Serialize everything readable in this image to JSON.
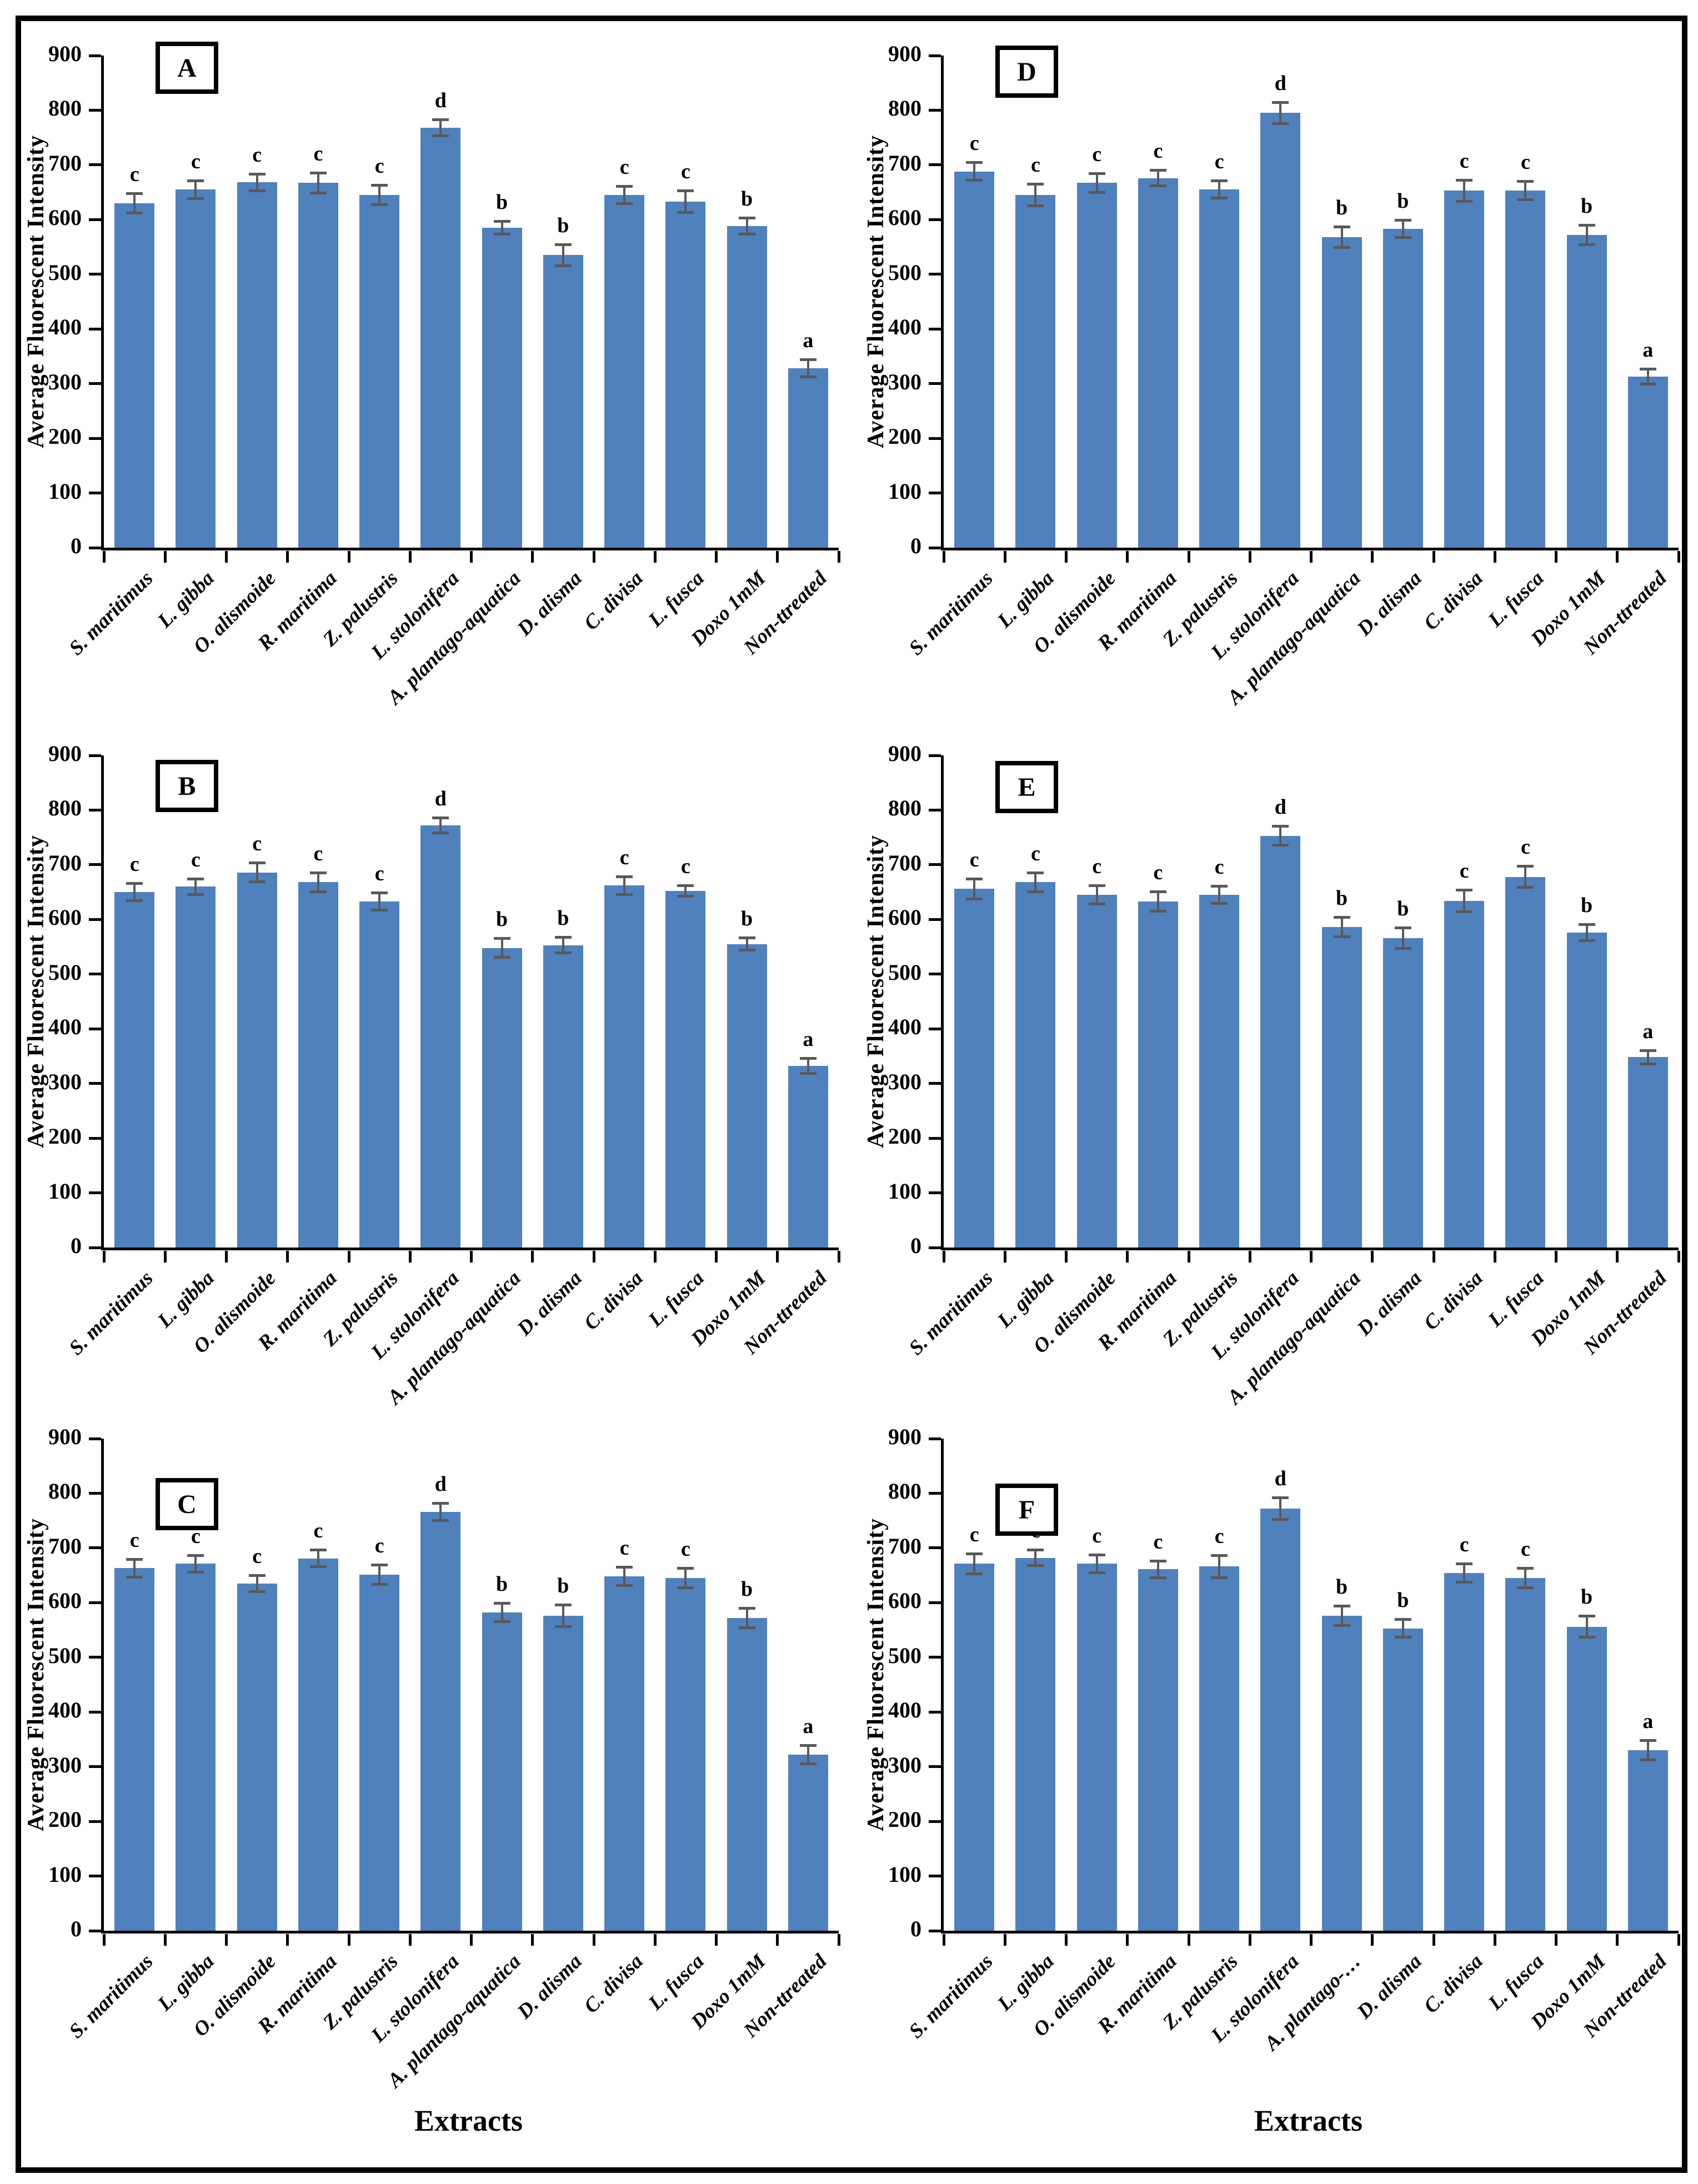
{
  "figure": {
    "xlabel": "Extracts",
    "bar_color": "#4F81BD",
    "error_color": "#595959"
  },
  "chart_data": [
    {
      "type": "bar",
      "panel_letter": "A",
      "ylabel": "Average Fluorescent Intensity",
      "xlabel": "",
      "ylim": [
        0,
        900
      ],
      "ytick_step": 100,
      "grid": "off",
      "legend": "none",
      "categories": [
        "S. maritimus",
        "L. gibba",
        "O. alismoide",
        "R. maritima",
        "Z. palustris",
        "L. stolonifera",
        "A. plantago-aquatica",
        "D. alisma",
        "C. divisa",
        "L. fusca",
        "Doxo 1mM",
        "Non-ttreated"
      ],
      "values": [
        630,
        655,
        668,
        667,
        645,
        768,
        585,
        535,
        645,
        633,
        588,
        328
      ],
      "errors": [
        18,
        17,
        16,
        19,
        18,
        15,
        12,
        20,
        16,
        20,
        15,
        16
      ],
      "sig_letters": [
        "c",
        "c",
        "c",
        "c",
        "c",
        "d",
        "b",
        "b",
        "c",
        "c",
        "b",
        "a"
      ],
      "bar_color": "#4F81BD",
      "error_color": "#595959"
    },
    {
      "type": "bar",
      "panel_letter": "D",
      "ylabel": "Average Fluorescent Intensity",
      "xlabel": "",
      "ylim": [
        0,
        900
      ],
      "ytick_step": 100,
      "grid": "off",
      "legend": "none",
      "categories": [
        "S. maritimus",
        "L. gibba",
        "O. alismoide",
        "R. maritima",
        "Z. palustris",
        "L. stolonifera",
        "A. plantago-aquatica",
        "D. alisma",
        "C. divisa",
        "L. fusca",
        "Doxo 1mM",
        "Non-ttreated"
      ],
      "values": [
        688,
        645,
        667,
        676,
        655,
        795,
        568,
        583,
        653,
        653,
        572,
        313
      ],
      "errors": [
        17,
        20,
        18,
        15,
        16,
        20,
        19,
        16,
        20,
        17,
        18,
        14
      ],
      "sig_letters": [
        "c",
        "c",
        "c",
        "c",
        "c",
        "d",
        "b",
        "b",
        "c",
        "c",
        "b",
        "a"
      ],
      "bar_color": "#4F81BD",
      "error_color": "#595959"
    },
    {
      "type": "bar",
      "panel_letter": "B",
      "ylabel": "Average Fluorescent Intensity",
      "xlabel": "",
      "ylim": [
        0,
        900
      ],
      "ytick_step": 100,
      "grid": "off",
      "legend": "none",
      "categories": [
        "S. maritimus",
        "L. gibba",
        "O. alismoide",
        "R. maritima",
        "Z. palustris",
        "L. stolonifera",
        "A. plantago-aquatica",
        "D. alisma",
        "C. divisa",
        "L. fusca",
        "Doxo 1mM",
        "Non-ttreated"
      ],
      "values": [
        650,
        660,
        686,
        668,
        633,
        772,
        548,
        553,
        662,
        652,
        555,
        332
      ],
      "errors": [
        16,
        15,
        18,
        18,
        16,
        14,
        18,
        15,
        17,
        10,
        12,
        14
      ],
      "sig_letters": [
        "c",
        "c",
        "c",
        "c",
        "c",
        "d",
        "b",
        "b",
        "c",
        "c",
        "b",
        "a"
      ],
      "bar_color": "#4F81BD",
      "error_color": "#595959"
    },
    {
      "type": "bar",
      "panel_letter": "E",
      "ylabel": "Average Fluorescent Intensity",
      "xlabel": "",
      "ylim": [
        0,
        900
      ],
      "ytick_step": 100,
      "grid": "off",
      "legend": "none",
      "categories": [
        "S. maritimus",
        "L. gibba",
        "O. alismoide",
        "R. maritima",
        "Z. palustris",
        "L. stolonifera",
        "A. plantago-aquatica",
        "D. alisma",
        "C. divisa",
        "L. fusca",
        "Doxo 1mM",
        "Non-ttreated"
      ],
      "values": [
        656,
        668,
        645,
        633,
        645,
        753,
        586,
        566,
        634,
        678,
        576,
        348
      ],
      "errors": [
        19,
        18,
        17,
        18,
        16,
        18,
        18,
        19,
        20,
        20,
        15,
        13
      ],
      "sig_letters": [
        "c",
        "c",
        "c",
        "c",
        "c",
        "d",
        "b",
        "b",
        "c",
        "c",
        "b",
        "a"
      ],
      "bar_color": "#4F81BD",
      "error_color": "#595959"
    },
    {
      "type": "bar",
      "panel_letter": "C",
      "ylabel": "Average Fluorescent Intensity",
      "xlabel": "Extracts",
      "ylim": [
        0,
        900
      ],
      "ytick_step": 100,
      "grid": "off",
      "legend": "none",
      "categories": [
        "S. maritimus",
        "L. gibba",
        "O. alismoide",
        "R. maritima",
        "Z. palustris",
        "L. stolonifera",
        "A. plantago-aquatica",
        "D. alisma",
        "C. divisa",
        "L. fusca",
        "Doxo 1mM",
        "Non-ttreated"
      ],
      "values": [
        663,
        671,
        635,
        681,
        651,
        766,
        582,
        576,
        648,
        645,
        572,
        322
      ],
      "errors": [
        17,
        16,
        15,
        16,
        18,
        16,
        17,
        20,
        17,
        18,
        18,
        17
      ],
      "sig_letters": [
        "c",
        "c",
        "c",
        "c",
        "c",
        "d",
        "b",
        "b",
        "c",
        "c",
        "b",
        "a"
      ],
      "bar_color": "#4F81BD",
      "error_color": "#595959"
    },
    {
      "type": "bar",
      "panel_letter": "F",
      "ylabel": "Average Fluorescent Intensity",
      "xlabel": "Extracts",
      "ylim": [
        0,
        900
      ],
      "ytick_step": 100,
      "grid": "off",
      "legend": "none",
      "categories": [
        "S. maritimus",
        "L. gibba",
        "O. alismoide",
        "R. maritima",
        "Z. palustris",
        "L. stolonifera",
        "A. plantago-…",
        "D. alisma",
        "C. divisa",
        "L. fusca",
        "Doxo 1mM",
        "Non-ttreated"
      ],
      "values": [
        671,
        682,
        671,
        661,
        666,
        772,
        576,
        553,
        654,
        645,
        556,
        330
      ],
      "errors": [
        19,
        15,
        17,
        16,
        21,
        20,
        18,
        17,
        17,
        18,
        20,
        18
      ],
      "sig_letters": [
        "c",
        "c",
        "c",
        "c",
        "c",
        "d",
        "b",
        "b",
        "c",
        "c",
        "b",
        "a"
      ],
      "bar_color": "#4F81BD",
      "error_color": "#595959"
    }
  ]
}
